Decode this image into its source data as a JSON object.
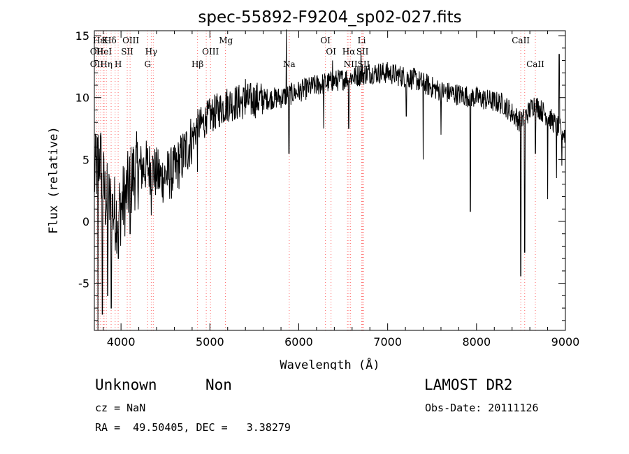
{
  "chart_data": {
    "type": "line",
    "title": "spec-55892-F9204_sp02-027.fits",
    "xlabel": "Wavelength (Å)",
    "ylabel": "Flux (relative)",
    "xlim": [
      3700,
      9000
    ],
    "ylim": [
      -8.8,
      15.4
    ],
    "xticks": [
      4000,
      5000,
      6000,
      7000,
      8000,
      9000
    ],
    "yticks": [
      -5,
      0,
      5,
      10,
      15
    ],
    "grid": false,
    "line_color": "#000000",
    "marker_color": "#ff6666",
    "spectrum_anchors": [
      [
        3700,
        3.5
      ],
      [
        3760,
        5.5
      ],
      [
        3820,
        2.0
      ],
      [
        3900,
        1.0
      ],
      [
        3960,
        0.5
      ],
      [
        4050,
        2.0
      ],
      [
        4150,
        4.0
      ],
      [
        4300,
        4.5
      ],
      [
        4450,
        3.5
      ],
      [
        4600,
        4.0
      ],
      [
        4750,
        6.0
      ],
      [
        4850,
        7.5
      ],
      [
        5000,
        8.5
      ],
      [
        5200,
        9.5
      ],
      [
        5500,
        9.8
      ],
      [
        5800,
        10.0
      ],
      [
        6000,
        10.5
      ],
      [
        6200,
        11.0
      ],
      [
        6500,
        11.5
      ],
      [
        6800,
        12.0
      ],
      [
        7000,
        12.0
      ],
      [
        7300,
        11.5
      ],
      [
        7600,
        10.5
      ],
      [
        8000,
        10.0
      ],
      [
        8300,
        9.5
      ],
      [
        8500,
        8.0
      ],
      [
        8650,
        9.5
      ],
      [
        8800,
        8.5
      ],
      [
        9000,
        7.0
      ]
    ],
    "spectrum_dips": [
      [
        3740,
        -8.8
      ],
      [
        3790,
        -7.5
      ],
      [
        3850,
        -6.0
      ],
      [
        3890,
        -7.0
      ],
      [
        3970,
        -3.0
      ],
      [
        4102,
        -1.0
      ],
      [
        4340,
        0.5
      ],
      [
        4860,
        4.0
      ],
      [
        5890,
        5.5
      ],
      [
        6280,
        7.5
      ],
      [
        6562,
        7.5
      ],
      [
        7210,
        8.5
      ],
      [
        7400,
        5.0
      ],
      [
        7600,
        7.0
      ],
      [
        7930,
        0.8
      ],
      [
        8498,
        -4.4
      ],
      [
        8542,
        -2.5
      ],
      [
        8662,
        5.5
      ],
      [
        8800,
        1.8
      ],
      [
        8900,
        3.5
      ],
      [
        8960,
        4.5
      ]
    ],
    "spectrum_spikes": [
      [
        5860,
        15.5
      ],
      [
        6380,
        13.0
      ],
      [
        6700,
        13.8
      ],
      [
        8930,
        13.5
      ],
      [
        4960,
        8.5
      ],
      [
        5400,
        11.5
      ]
    ],
    "lines_top": [
      {
        "label": "Hε",
        "wavelength": 3750
      },
      {
        "label": "K",
        "wavelength": 3820
      },
      {
        "label": "Hδ",
        "wavelength": 3880
      },
      {
        "label": "OIII",
        "wavelength": 4110
      },
      {
        "label": "Mg",
        "wavelength": 5180
      },
      {
        "label": "OI",
        "wavelength": 6300
      },
      {
        "label": "Li",
        "wavelength": 6708
      },
      {
        "label": "CaII",
        "wavelength": 8498
      }
    ],
    "lines_mid": [
      {
        "label": "OII",
        "wavelength": 3727
      },
      {
        "label": "HeI",
        "wavelength": 3810
      },
      {
        "label": "SII",
        "wavelength": 4070
      },
      {
        "label": "Hγ",
        "wavelength": 4340
      },
      {
        "label": "OIII",
        "wavelength": 5007
      },
      {
        "label": "OI",
        "wavelength": 6363
      },
      {
        "label": "Hα",
        "wavelength": 6563
      },
      {
        "label": "SII",
        "wavelength": 6716
      }
    ],
    "lines_low": [
      {
        "label": "OII",
        "wavelength": 3727
      },
      {
        "label": "Hη",
        "wavelength": 3835
      },
      {
        "label": "H",
        "wavelength": 3968
      },
      {
        "label": "G",
        "wavelength": 4300
      },
      {
        "label": "Hβ",
        "wavelength": 4861
      },
      {
        "label": "Na",
        "wavelength": 5893
      },
      {
        "label": "NII",
        "wavelength": 6583
      },
      {
        "label": "SII",
        "wavelength": 6731
      },
      {
        "label": "CaII",
        "wavelength": 8662
      }
    ],
    "marker_wavelengths": [
      3727,
      3750,
      3771,
      3798,
      3810,
      3835,
      3889,
      3934,
      3968,
      4070,
      4102,
      4300,
      4340,
      4363,
      4861,
      4959,
      5007,
      5175,
      5893,
      6300,
      6363,
      6548,
      6563,
      6583,
      6708,
      6716,
      6731,
      8498,
      8542,
      8662
    ]
  },
  "info": {
    "class": "Unknown",
    "subclass": "Non",
    "survey": "LAMOST DR2",
    "cz": "cz = NaN",
    "obs_date": "Obs-Date: 20111126",
    "radec": "RA =  49.50405, DEC =   3.38279"
  }
}
